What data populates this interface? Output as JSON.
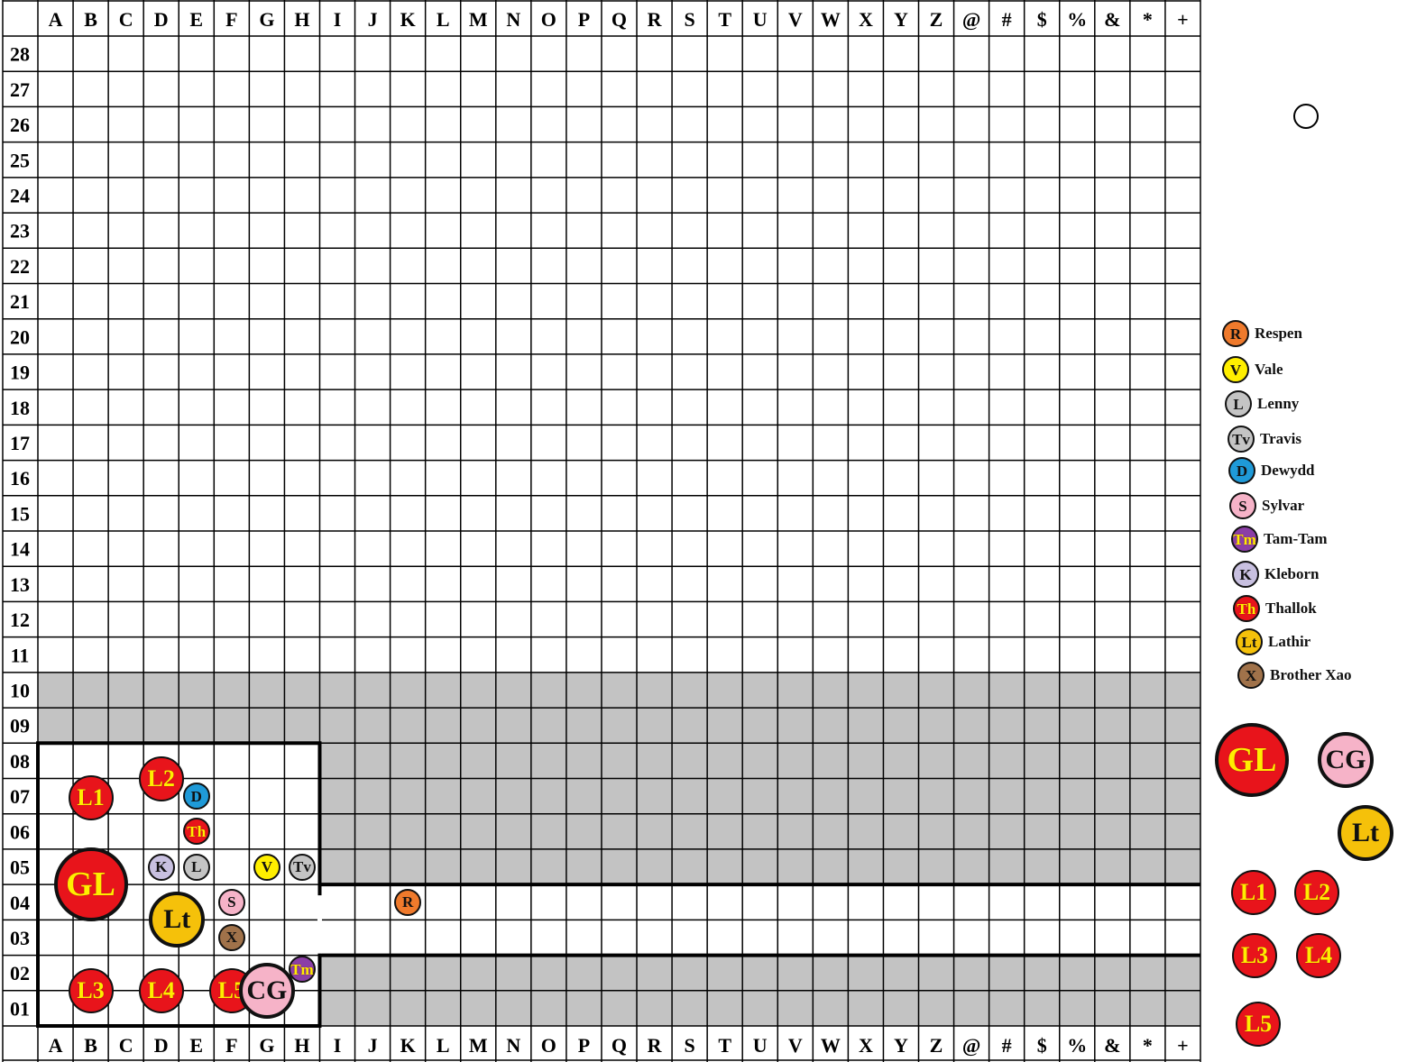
{
  "columns": [
    "A",
    "B",
    "C",
    "D",
    "E",
    "F",
    "G",
    "H",
    "I",
    "J",
    "K",
    "L",
    "M",
    "N",
    "O",
    "P",
    "Q",
    "R",
    "S",
    "T",
    "U",
    "V",
    "W",
    "X",
    "Y",
    "Z",
    "@",
    "#",
    "$",
    "%",
    "&",
    "*",
    "+"
  ],
  "rows": [
    "28",
    "27",
    "26",
    "25",
    "24",
    "23",
    "22",
    "21",
    "20",
    "19",
    "18",
    "17",
    "16",
    "15",
    "14",
    "13",
    "12",
    "11",
    "10",
    "09",
    "08",
    "07",
    "06",
    "05",
    "04",
    "03",
    "02",
    "01"
  ],
  "shaded_rows": [
    "10",
    "09",
    "08",
    "07",
    "06",
    "05",
    "02",
    "01"
  ],
  "room": {
    "from_col": "A",
    "to_col": "H",
    "from_row": "01",
    "to_row": "08"
  },
  "corridor": {
    "from_col": "I",
    "to_col": "+",
    "from_row": "03",
    "to_row": "04"
  },
  "colors": {
    "red": "#e8141b",
    "yellow_text": "#ffee00",
    "gold": "#f5c10a",
    "pink": "#f6b3c8",
    "orange": "#ef7a2c",
    "yellow": "#ffef00",
    "gray": "#c4c4c4",
    "blue": "#1f9ad8",
    "purple": "#8b3ea6",
    "lavender": "#c8c0e0",
    "brown": "#a0724a",
    "shade": "#c3c3c3"
  },
  "tokens": [
    {
      "label": "L2",
      "col": "D",
      "row": "08",
      "fill": "red",
      "text": "yellow_text",
      "size": "medium"
    },
    {
      "label": "L1",
      "col": "B",
      "row": "07",
      "fill": "red",
      "text": "yellow_text",
      "size": "medium"
    },
    {
      "label": "D",
      "col": "E",
      "row": "07",
      "fill": "blue",
      "text": "black",
      "size": "small"
    },
    {
      "label": "Th",
      "col": "E",
      "row": "06",
      "fill": "red",
      "text": "yellow_text",
      "size": "small"
    },
    {
      "label": "K",
      "col": "D",
      "row": "05",
      "fill": "lavender",
      "text": "black",
      "size": "small"
    },
    {
      "label": "L",
      "col": "E",
      "row": "05",
      "fill": "gray",
      "text": "black",
      "size": "small"
    },
    {
      "label": "V",
      "col": "G",
      "row": "05",
      "fill": "yellow",
      "text": "black",
      "size": "small"
    },
    {
      "label": "Tv",
      "col": "H",
      "row": "05",
      "fill": "gray",
      "text": "black",
      "size": "small"
    },
    {
      "label": "GL",
      "col": "B",
      "row": "04",
      "fill": "red",
      "text": "yellow_text",
      "size": "large"
    },
    {
      "label": "Lt",
      "col": "E",
      "row": "04",
      "fill": "gold",
      "text": "black",
      "size": "big"
    },
    {
      "label": "S",
      "col": "F",
      "row": "04",
      "fill": "pink",
      "text": "black",
      "size": "small"
    },
    {
      "label": "R",
      "col": "K",
      "row": "04",
      "fill": "orange",
      "text": "black",
      "size": "small"
    },
    {
      "label": "X",
      "col": "F",
      "row": "03",
      "fill": "brown",
      "text": "black",
      "size": "small"
    },
    {
      "label": "L3",
      "col": "B",
      "row": "01",
      "fill": "red",
      "text": "yellow_text",
      "size": "medium"
    },
    {
      "label": "L4",
      "col": "D",
      "row": "01",
      "fill": "red",
      "text": "yellow_text",
      "size": "medium"
    },
    {
      "label": "L5",
      "col": "F",
      "row": "01",
      "fill": "red",
      "text": "yellow_text",
      "size": "medium"
    },
    {
      "label": "CG",
      "col": "H",
      "row": "01",
      "fill": "pink",
      "text": "black",
      "size": "big"
    },
    {
      "label": "Tm",
      "col": "H",
      "row": "02",
      "fill": "purple",
      "text": "yellow_text",
      "size": "small"
    }
  ],
  "legend": [
    {
      "label": "R",
      "name": "Respen",
      "fill": "orange",
      "text": "black"
    },
    {
      "label": "V",
      "name": "Vale",
      "fill": "yellow",
      "text": "black"
    },
    {
      "label": "L",
      "name": "Lenny",
      "fill": "gray",
      "text": "black"
    },
    {
      "label": "Tv",
      "name": "Travis",
      "fill": "gray",
      "text": "black"
    },
    {
      "label": "D",
      "name": "Dewydd",
      "fill": "blue",
      "text": "black"
    },
    {
      "label": "S",
      "name": "Sylvar",
      "fill": "pink",
      "text": "black"
    },
    {
      "label": "Tm",
      "name": "Tam-Tam",
      "fill": "purple",
      "text": "yellow_text"
    },
    {
      "label": "K",
      "name": "Kleborn",
      "fill": "lavender",
      "text": "black"
    },
    {
      "label": "Th",
      "name": "Thallok",
      "fill": "red",
      "text": "yellow_text"
    },
    {
      "label": "Lt",
      "name": "Lathir",
      "fill": "gold",
      "text": "black"
    },
    {
      "label": "X",
      "name": "Brother Xao",
      "fill": "brown",
      "text": "black"
    }
  ],
  "reserve": [
    {
      "label": "GL",
      "fill": "red",
      "text": "yellow_text",
      "size": "large"
    },
    {
      "label": "CG",
      "fill": "pink",
      "text": "black",
      "size": "big"
    },
    {
      "label": "Lt",
      "fill": "gold",
      "text": "black",
      "size": "big"
    },
    {
      "label": "L1",
      "fill": "red",
      "text": "yellow_text",
      "size": "medium"
    },
    {
      "label": "L2",
      "fill": "red",
      "text": "yellow_text",
      "size": "medium"
    },
    {
      "label": "L3",
      "fill": "red",
      "text": "yellow_text",
      "size": "medium"
    },
    {
      "label": "L4",
      "fill": "red",
      "text": "yellow_text",
      "size": "medium"
    },
    {
      "label": "L5",
      "fill": "red",
      "text": "yellow_text",
      "size": "medium"
    }
  ]
}
